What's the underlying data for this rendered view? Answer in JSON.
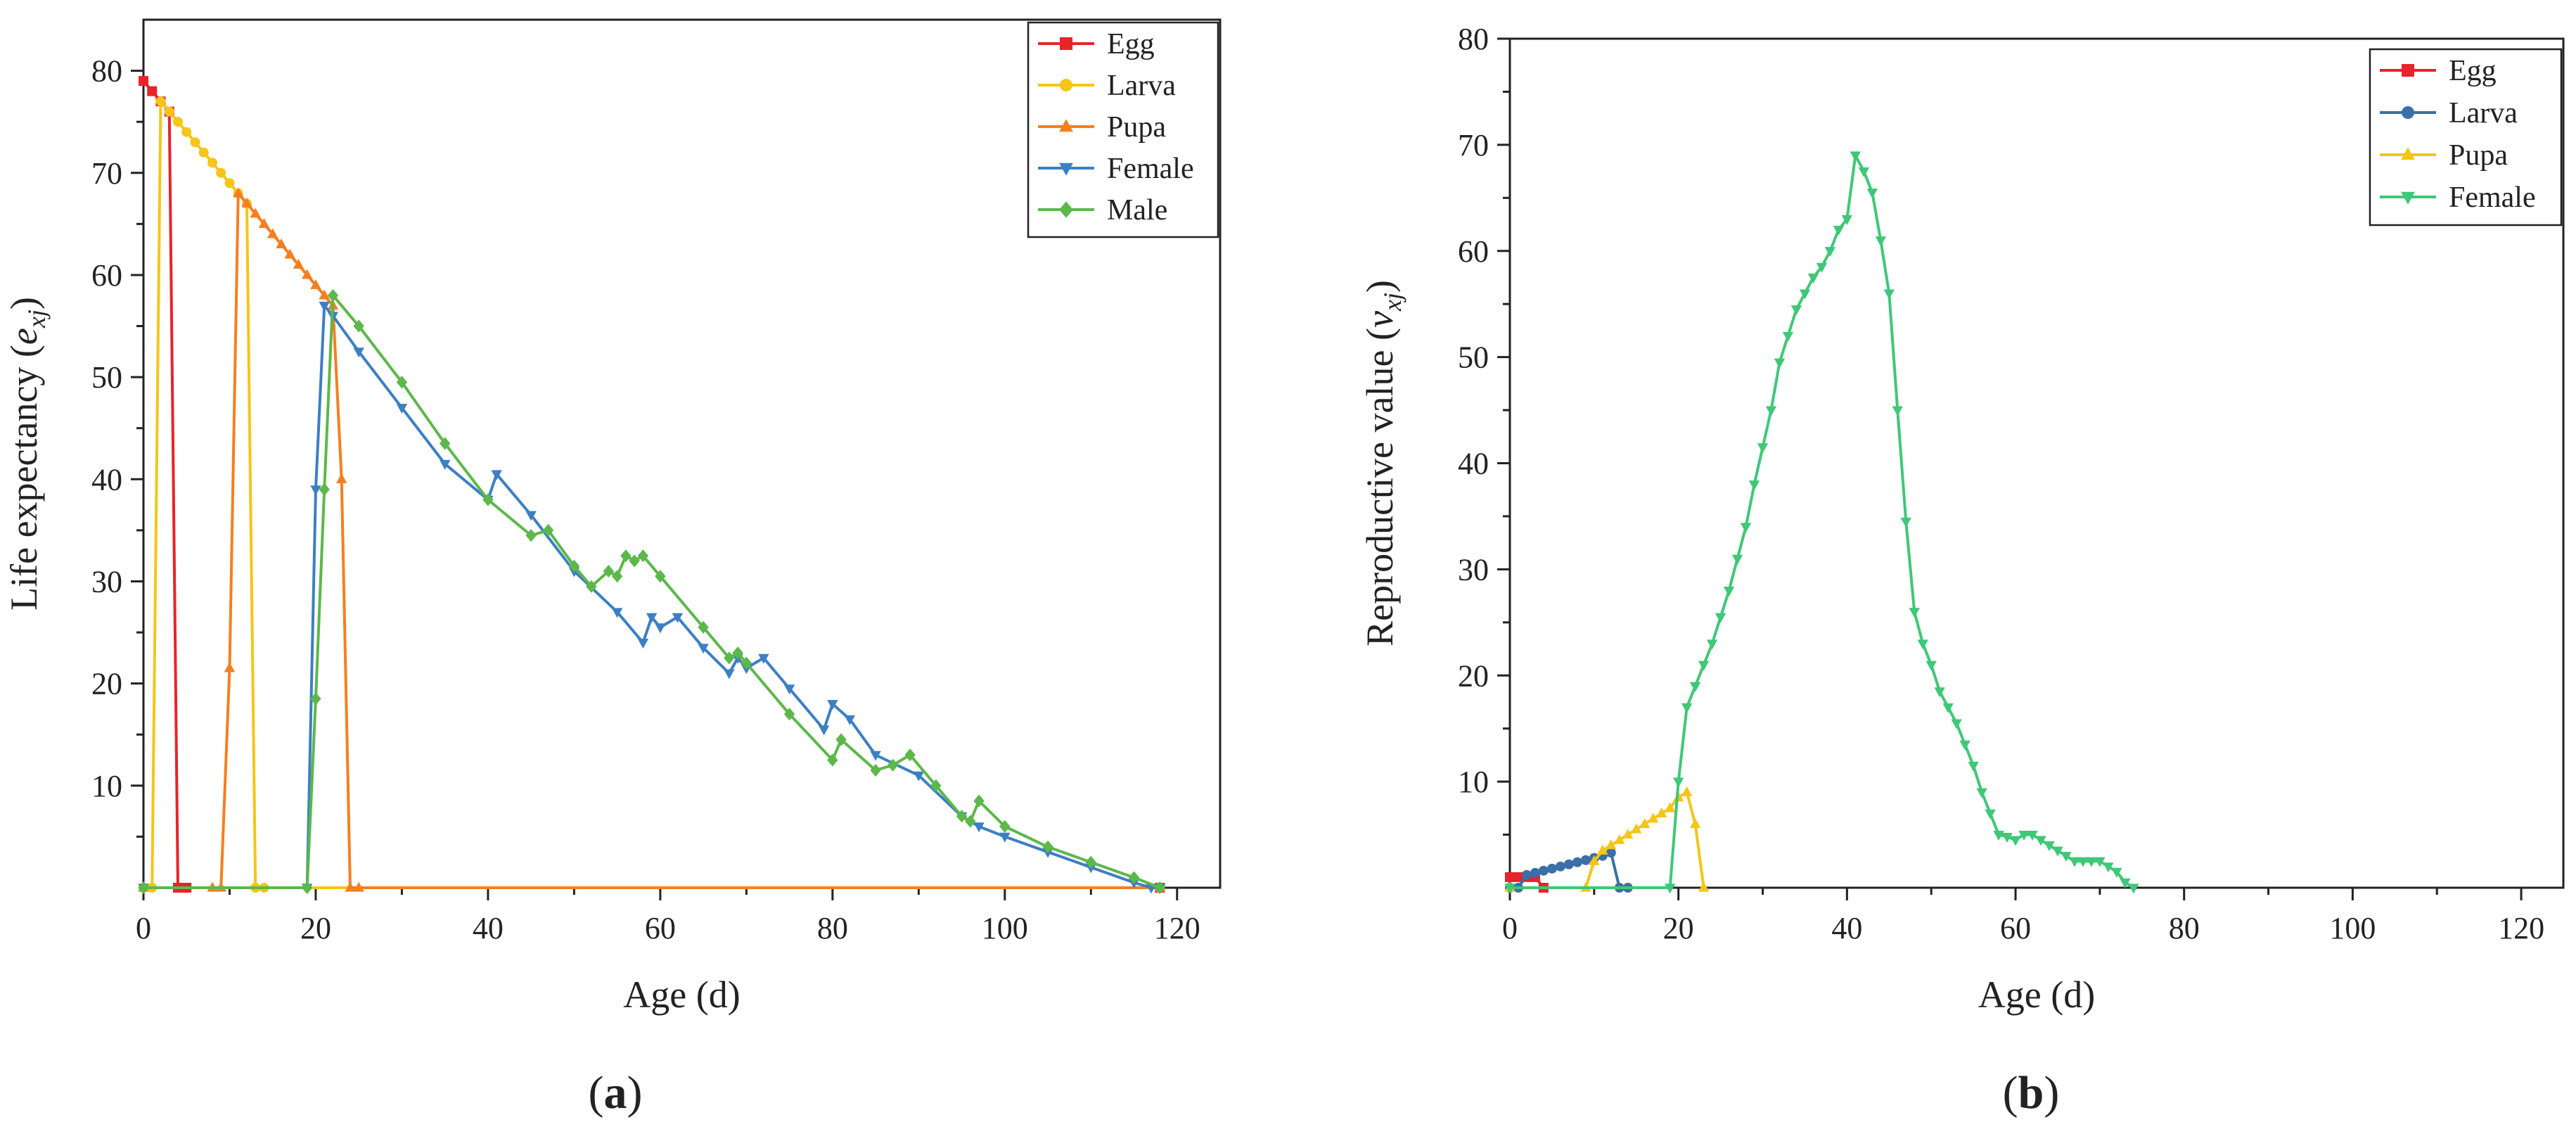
{
  "chart_data": [
    {
      "type": "line",
      "panel_label": "a",
      "xlabel": "Age (d)",
      "ylabel_prefix": "Life expectancy (",
      "ylabel_var": "e",
      "ylabel_sub": "xj",
      "ylabel_suffix": ")",
      "xlim": [
        0,
        125
      ],
      "ylim": [
        0,
        85
      ],
      "xticks": [
        0,
        20,
        40,
        60,
        80,
        100,
        120
      ],
      "yticks": [
        10,
        20,
        30,
        40,
        50,
        60,
        70,
        80
      ],
      "legend_position": "top-right",
      "series": [
        {
          "name": "Egg",
          "color": "#e8232a",
          "marker": "square",
          "x": [
            0,
            1,
            2,
            3,
            4,
            5,
            118
          ],
          "y": [
            79,
            78,
            77,
            76,
            0,
            0,
            0
          ]
        },
        {
          "name": "Larva",
          "color": "#f5c518",
          "marker": "circle",
          "x": [
            0,
            1,
            2,
            3,
            4,
            5,
            6,
            7,
            8,
            9,
            10,
            11,
            12,
            13,
            14,
            118
          ],
          "y": [
            0,
            0,
            77,
            76,
            75,
            74,
            73,
            72,
            71,
            70,
            69,
            68,
            67,
            0,
            0,
            0
          ]
        },
        {
          "name": "Pupa",
          "color": "#f57f20",
          "marker": "triangle-up",
          "x": [
            0,
            8,
            9,
            10,
            11,
            12,
            13,
            14,
            15,
            16,
            17,
            18,
            19,
            20,
            21,
            22,
            23,
            24,
            25,
            118
          ],
          "y": [
            0,
            0,
            0,
            21.5,
            68,
            67,
            66,
            65,
            64,
            63,
            62,
            61,
            60,
            59,
            58,
            57,
            40,
            0,
            0,
            0
          ]
        },
        {
          "name": "Female",
          "color": "#3c7fc4",
          "marker": "triangle-down",
          "x": [
            0,
            19,
            20,
            21,
            22,
            25,
            30,
            35,
            40,
            41,
            45,
            50,
            55,
            58,
            59,
            60,
            62,
            65,
            68,
            69,
            70,
            72,
            75,
            79,
            80,
            82,
            85,
            90,
            95,
            97,
            100,
            105,
            110,
            115,
            117,
            118
          ],
          "y": [
            0,
            0,
            39,
            57,
            56,
            52.5,
            47,
            41.5,
            38,
            40.5,
            36.5,
            31,
            27,
            24,
            26.5,
            25.5,
            26.5,
            23.5,
            21,
            22.5,
            21.5,
            22.5,
            19.5,
            15.5,
            18,
            16.5,
            13,
            11,
            7,
            6,
            5,
            3.5,
            2,
            0.5,
            0,
            0
          ]
        },
        {
          "name": "Male",
          "color": "#5cb84a",
          "marker": "diamond",
          "x": [
            0,
            19,
            20,
            21,
            22,
            25,
            30,
            35,
            40,
            45,
            47,
            50,
            52,
            54,
            55,
            56,
            57,
            58,
            60,
            65,
            68,
            69,
            70,
            75,
            80,
            81,
            85,
            87,
            89,
            92,
            95,
            96,
            97,
            100,
            105,
            110,
            115,
            118
          ],
          "y": [
            0,
            0,
            18.5,
            39,
            58,
            55,
            49.5,
            43.5,
            38,
            34.5,
            35,
            31.5,
            29.5,
            31,
            30.5,
            32.5,
            32,
            32.5,
            30.5,
            25.5,
            22.5,
            23,
            22,
            17,
            12.5,
            14.5,
            11.5,
            12,
            13,
            10,
            7,
            6.5,
            8.5,
            6,
            4,
            2.5,
            1,
            0
          ]
        }
      ]
    },
    {
      "type": "line",
      "panel_label": "b",
      "xlabel": "Age (d)",
      "ylabel_prefix": "Reproductive value (",
      "ylabel_var": "v",
      "ylabel_sub": "xj",
      "ylabel_suffix": ")",
      "xlim": [
        0,
        125
      ],
      "ylim": [
        0,
        80
      ],
      "xticks": [
        0,
        20,
        40,
        60,
        80,
        100,
        120
      ],
      "yticks": [
        10,
        20,
        30,
        40,
        50,
        60,
        70,
        80
      ],
      "legend_position": "top-right",
      "series": [
        {
          "name": "Egg",
          "color": "#e8232a",
          "marker": "square",
          "x": [
            0,
            1,
            2,
            3,
            4
          ],
          "y": [
            1,
            1,
            1,
            1,
            0
          ]
        },
        {
          "name": "Larva",
          "color": "#3a6fa8",
          "marker": "circle",
          "x": [
            0,
            1,
            2,
            3,
            4,
            5,
            6,
            7,
            8,
            9,
            10,
            11,
            12,
            13,
            14
          ],
          "y": [
            0,
            0,
            1.2,
            1.4,
            1.6,
            1.8,
            2.0,
            2.2,
            2.4,
            2.6,
            2.8,
            3.0,
            3.3,
            0,
            0
          ]
        },
        {
          "name": "Pupa",
          "color": "#f5c518",
          "marker": "triangle-up",
          "x": [
            0,
            9,
            10,
            11,
            12,
            13,
            14,
            15,
            16,
            17,
            18,
            19,
            20,
            21,
            22,
            23
          ],
          "y": [
            0,
            0,
            2.5,
            3.5,
            4,
            4.5,
            5,
            5.5,
            6,
            6.5,
            7,
            7.5,
            8.5,
            9,
            6,
            0
          ]
        },
        {
          "name": "Female",
          "color": "#3ec878",
          "marker": "triangle-down",
          "x": [
            0,
            19,
            20,
            21,
            22,
            23,
            24,
            25,
            26,
            27,
            28,
            29,
            30,
            31,
            32,
            33,
            34,
            35,
            36,
            37,
            38,
            39,
            40,
            41,
            42,
            43,
            44,
            45,
            46,
            47,
            48,
            49,
            50,
            51,
            52,
            53,
            54,
            55,
            56,
            57,
            58,
            59,
            60,
            61,
            62,
            63,
            64,
            65,
            66,
            67,
            68,
            69,
            70,
            71,
            72,
            73,
            74
          ],
          "y": [
            0,
            0,
            10,
            17,
            19,
            21,
            23,
            25.5,
            28,
            31,
            34,
            38,
            41.5,
            45,
            49.5,
            52,
            54.5,
            56,
            57.5,
            58.5,
            60,
            62,
            63,
            69,
            67.5,
            65.5,
            61,
            56,
            45,
            34.5,
            26,
            23,
            21,
            18.5,
            17,
            15.5,
            13.5,
            11.5,
            9,
            7,
            5,
            4.8,
            4.5,
            5,
            5,
            4.5,
            4,
            3.5,
            3,
            2.5,
            2.5,
            2.5,
            2.5,
            2,
            1.5,
            0.5,
            0
          ]
        }
      ]
    }
  ]
}
